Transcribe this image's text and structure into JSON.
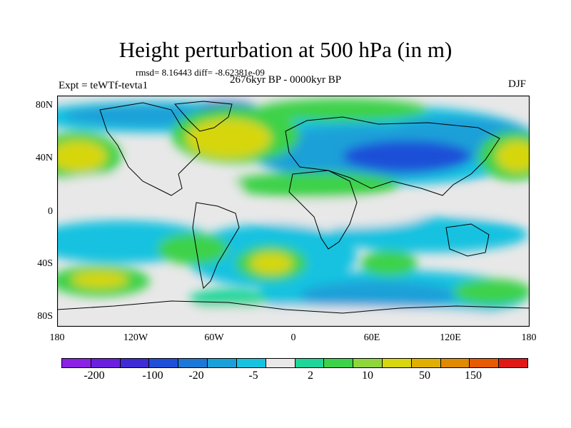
{
  "title": "Height perturbation at 500 hPa (in m)",
  "stats": "rmsd= 8.16443 diff= -8.62381e-09",
  "expt": "Expt = teWTf-tevta1",
  "period": "2676kyr BP - 0000kyr BP",
  "season": "DJF",
  "lat_labels": [
    "80N",
    "40N",
    "0",
    "40S",
    "80S"
  ],
  "lon_labels": [
    "180",
    "120W",
    "60W",
    "0",
    "60E",
    "120E",
    "180"
  ],
  "colorbar": {
    "colors": [
      "#8b22e6",
      "#6a1fe0",
      "#3d2bd6",
      "#1f4fd8",
      "#1c78d6",
      "#1aa0d8",
      "#16c2e0",
      "#e8e8e8",
      "#1fd69a",
      "#3cd24a",
      "#8fd63c",
      "#d7d60f",
      "#e0b000",
      "#e08a00",
      "#e65a00",
      "#e01818"
    ],
    "labels": [
      "-200",
      "-100",
      "-20",
      "-5",
      "2",
      "10",
      "50",
      "150"
    ]
  }
}
